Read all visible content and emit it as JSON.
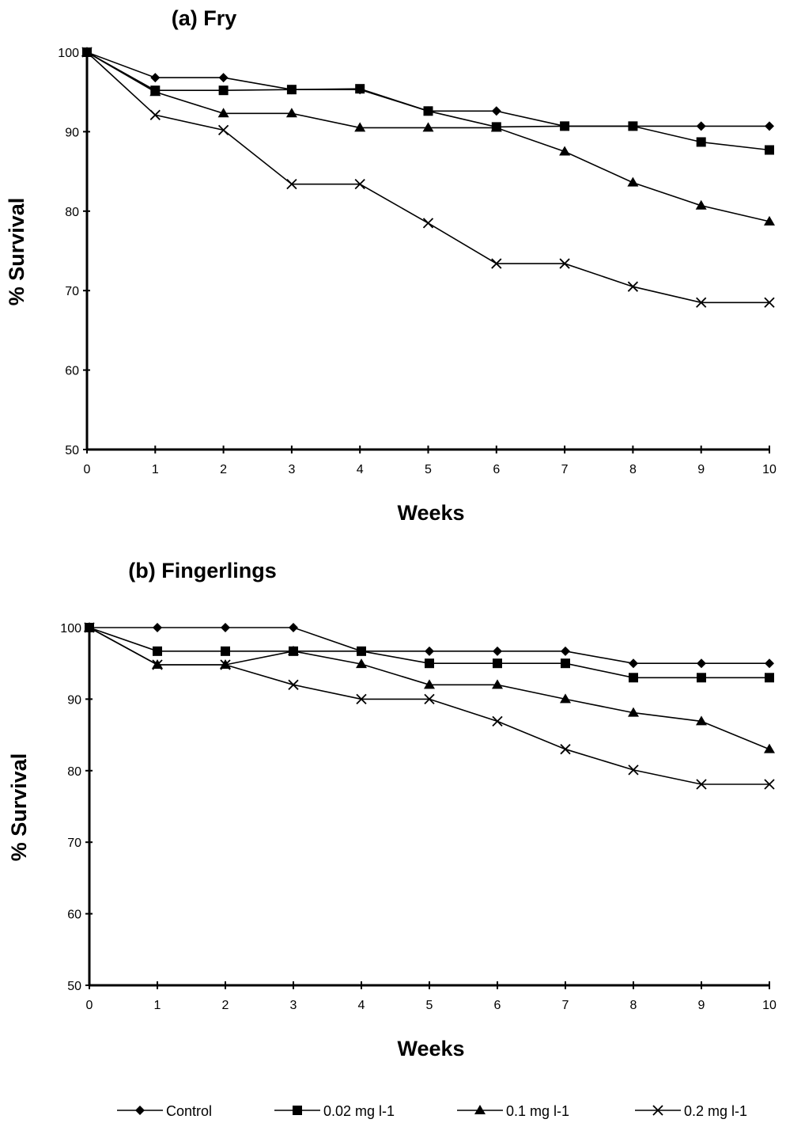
{
  "chart_data": [
    {
      "type": "line",
      "title": "(a) Fry",
      "xlabel": "Weeks",
      "ylabel": "% Survival",
      "x": [
        0,
        1,
        2,
        3,
        4,
        5,
        6,
        7,
        8,
        9,
        10
      ],
      "xlim": [
        0,
        10
      ],
      "ylim": [
        50,
        100
      ],
      "yticks": [
        50,
        60,
        70,
        80,
        90,
        100
      ],
      "grid": false,
      "series": [
        {
          "name": "Control",
          "marker": "diamond",
          "values": [
            100,
            96.8,
            96.8,
            95.3,
            95.3,
            92.6,
            92.6,
            90.7,
            90.7,
            90.7,
            90.7
          ]
        },
        {
          "name": "0.02 mg l-1",
          "marker": "square",
          "values": [
            100,
            95.2,
            95.2,
            95.3,
            95.4,
            92.6,
            90.6,
            90.7,
            90.7,
            88.7,
            87.7
          ]
        },
        {
          "name": "0.1 mg l-1",
          "marker": "triangle",
          "values": [
            100,
            95.0,
            92.3,
            92.3,
            90.5,
            90.5,
            90.5,
            87.5,
            83.6,
            80.7,
            78.7
          ]
        },
        {
          "name": "0.2 mg l-1",
          "marker": "x",
          "values": [
            100,
            92.1,
            90.2,
            83.4,
            83.4,
            78.5,
            73.4,
            73.4,
            70.5,
            68.5,
            68.5
          ]
        }
      ]
    },
    {
      "type": "line",
      "title": "(b) Fingerlings",
      "xlabel": "Weeks",
      "ylabel": "% Survival",
      "x": [
        0,
        1,
        2,
        3,
        4,
        5,
        6,
        7,
        8,
        9,
        10
      ],
      "xlim": [
        0,
        10
      ],
      "ylim": [
        50,
        100
      ],
      "yticks": [
        50,
        60,
        70,
        80,
        90,
        100
      ],
      "grid": false,
      "series": [
        {
          "name": "Control",
          "marker": "diamond",
          "values": [
            100,
            100,
            100,
            100,
            96.7,
            96.7,
            96.7,
            96.7,
            95.0,
            95.0,
            95.0
          ]
        },
        {
          "name": "0.02 mg l-1",
          "marker": "square",
          "values": [
            100,
            96.7,
            96.7,
            96.7,
            96.7,
            95.0,
            95.0,
            95.0,
            93.0,
            93.0,
            93.0
          ]
        },
        {
          "name": "0.1 mg l-1",
          "marker": "triangle",
          "values": [
            100,
            94.8,
            94.8,
            96.7,
            94.9,
            92.0,
            92.0,
            90.0,
            88.1,
            86.9,
            83.0
          ]
        },
        {
          "name": "0.2 mg l-1",
          "marker": "x",
          "values": [
            100,
            94.8,
            94.8,
            92.0,
            90.0,
            90.0,
            86.9,
            83.0,
            80.1,
            78.1,
            78.1
          ]
        }
      ]
    }
  ],
  "legend": {
    "placement": "bottom",
    "entries": [
      "Control",
      "0.02 mg l-1",
      "0.1 mg l-1",
      "0.2 mg l-1"
    ]
  }
}
